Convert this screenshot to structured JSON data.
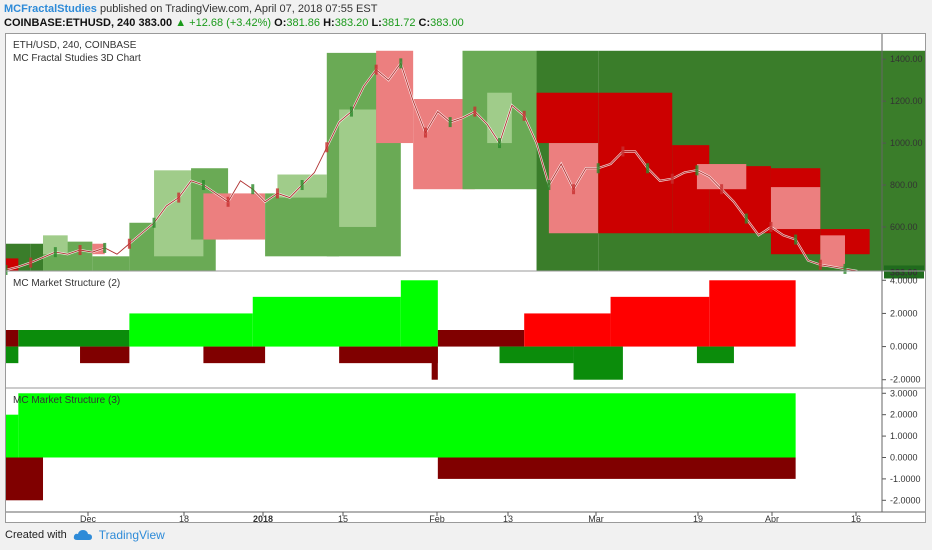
{
  "header": {
    "publisher": "MCFractalStudies",
    "published_text": "published on TradingView.com, April 07, 2018 07:55 EST",
    "symbol": "COINBASE:ETHUSD, 240",
    "last": "383.00",
    "change": "▲ +12.68 (+3.42%)",
    "o_label": "O:",
    "o_value": "381.86",
    "h_label": "H:",
    "h_value": "383.20",
    "l_label": "L:",
    "l_value": "381.72",
    "c_label": "C:",
    "c_value": "383.00"
  },
  "footer": {
    "created_with": "Created with",
    "brand": "TradingView",
    "logo_icon": "tradingview-cloud-icon"
  },
  "colors": {
    "dark_green": "#3a7d2a",
    "mid_green": "#6aaa55",
    "light_green": "#a0cc8a",
    "dark_red": "#cc0000",
    "light_red": "#ec7f7f",
    "bright_green": "#00ff00",
    "bright_red": "#ff0000",
    "maroon": "#800000",
    "forest_green": "#0b8c0b",
    "price_badge": "#206b1d"
  },
  "chart_data": [
    {
      "type": "area",
      "title": "ETH/USD, 240, COINBASE",
      "subtitle": "MC Fractal Studies 3D Chart",
      "y_ticks": [
        "1400.00",
        "1200.00",
        "1000.00",
        "800.00",
        "600.00"
      ],
      "ylim": [
        390,
        1520
      ],
      "last_price_label": "383.00",
      "x_ticks": [
        "Dec",
        "18",
        "2018",
        "15",
        "Feb",
        "13",
        "Mar",
        "19",
        "Apr",
        "16"
      ],
      "price_path": [
        [
          0,
          395
        ],
        [
          1,
          410
        ],
        [
          2,
          430
        ],
        [
          3,
          455
        ],
        [
          4,
          480
        ],
        [
          5,
          470
        ],
        [
          6,
          490
        ],
        [
          7,
          480
        ],
        [
          8,
          500
        ],
        [
          9,
          470
        ],
        [
          10,
          520
        ],
        [
          11,
          570
        ],
        [
          12,
          620
        ],
        [
          13,
          700
        ],
        [
          14,
          740
        ],
        [
          15,
          820
        ],
        [
          16,
          800
        ],
        [
          17,
          760
        ],
        [
          18,
          720
        ],
        [
          19,
          820
        ],
        [
          20,
          780
        ],
        [
          21,
          720
        ],
        [
          22,
          760
        ],
        [
          23,
          740
        ],
        [
          24,
          800
        ],
        [
          25,
          860
        ],
        [
          26,
          980
        ],
        [
          27,
          1100
        ],
        [
          28,
          1150
        ],
        [
          29,
          1270
        ],
        [
          30,
          1350
        ],
        [
          31,
          1300
        ],
        [
          32,
          1380
        ],
        [
          33,
          1200
        ],
        [
          34,
          1050
        ],
        [
          35,
          1150
        ],
        [
          36,
          1100
        ],
        [
          37,
          1120
        ],
        [
          38,
          1150
        ],
        [
          39,
          1090
        ],
        [
          40,
          1000
        ],
        [
          41,
          1180
        ],
        [
          42,
          1130
        ],
        [
          43,
          1000
        ],
        [
          44,
          800
        ],
        [
          45,
          900
        ],
        [
          46,
          780
        ],
        [
          47,
          880
        ],
        [
          48,
          880
        ],
        [
          49,
          900
        ],
        [
          50,
          960
        ],
        [
          51,
          960
        ],
        [
          52,
          880
        ],
        [
          53,
          820
        ],
        [
          54,
          830
        ],
        [
          55,
          860
        ],
        [
          56,
          870
        ],
        [
          57,
          840
        ],
        [
          58,
          780
        ],
        [
          59,
          720
        ],
        [
          60,
          640
        ],
        [
          61,
          560
        ],
        [
          62,
          600
        ],
        [
          63,
          560
        ],
        [
          64,
          540
        ],
        [
          65,
          440
        ],
        [
          66,
          420
        ],
        [
          67,
          410
        ],
        [
          68,
          400
        ],
        [
          69,
          390
        ]
      ],
      "zones": [
        {
          "x0": 0,
          "x1": 2,
          "y0": 390,
          "y1": 520,
          "color": "dark_green"
        },
        {
          "x0": 0,
          "x1": 1,
          "y0": 390,
          "y1": 450,
          "color": "dark_red"
        },
        {
          "x0": 2,
          "x1": 3,
          "y0": 390,
          "y1": 520,
          "color": "dark_green"
        },
        {
          "x0": 3,
          "x1": 7,
          "y0": 390,
          "y1": 530,
          "color": "mid_green"
        },
        {
          "x0": 3,
          "x1": 5,
          "y0": 470,
          "y1": 560,
          "color": "light_green"
        },
        {
          "x0": 7,
          "x1": 8,
          "y0": 470,
          "y1": 520,
          "color": "light_red"
        },
        {
          "x0": 7,
          "x1": 10,
          "y0": 390,
          "y1": 460,
          "color": "mid_green"
        },
        {
          "x0": 10,
          "x1": 17,
          "y0": 390,
          "y1": 620,
          "color": "mid_green"
        },
        {
          "x0": 12,
          "x1": 16,
          "y0": 460,
          "y1": 870,
          "color": "light_green"
        },
        {
          "x0": 15,
          "x1": 18,
          "y0": 540,
          "y1": 880,
          "color": "mid_green"
        },
        {
          "x0": 16,
          "x1": 21,
          "y0": 540,
          "y1": 760,
          "color": "light_red"
        },
        {
          "x0": 21,
          "x1": 27,
          "y0": 460,
          "y1": 760,
          "color": "mid_green"
        },
        {
          "x0": 22,
          "x1": 26,
          "y0": 740,
          "y1": 850,
          "color": "light_green"
        },
        {
          "x0": 26,
          "x1": 32,
          "y0": 460,
          "y1": 1430,
          "color": "mid_green"
        },
        {
          "x0": 27,
          "x1": 30,
          "y0": 600,
          "y1": 1160,
          "color": "light_green"
        },
        {
          "x0": 30,
          "x1": 33,
          "y0": 1000,
          "y1": 1440,
          "color": "light_red"
        },
        {
          "x0": 33,
          "x1": 38,
          "y0": 780,
          "y1": 1210,
          "color": "light_red"
        },
        {
          "x0": 37,
          "x1": 43,
          "y0": 780,
          "y1": 1440,
          "color": "mid_green"
        },
        {
          "x0": 39,
          "x1": 41,
          "y0": 1000,
          "y1": 1240,
          "color": "light_green"
        },
        {
          "x0": 43,
          "x1": 48,
          "y0": 390,
          "y1": 1440,
          "color": "dark_green"
        },
        {
          "x0": 43,
          "x1": 48,
          "y0": 1000,
          "y1": 1240,
          "color": "dark_red"
        },
        {
          "x0": 44,
          "x1": 48,
          "y0": 570,
          "y1": 1000,
          "color": "light_red"
        },
        {
          "x0": 48,
          "x1": 80,
          "y0": 390,
          "y1": 1440,
          "color": "dark_green"
        },
        {
          "x0": 48,
          "x1": 54,
          "y0": 570,
          "y1": 1240,
          "color": "dark_red"
        },
        {
          "x0": 54,
          "x1": 57,
          "y0": 570,
          "y1": 990,
          "color": "dark_red"
        },
        {
          "x0": 57,
          "x1": 62,
          "y0": 570,
          "y1": 890,
          "color": "dark_red"
        },
        {
          "x0": 56,
          "x1": 60,
          "y0": 780,
          "y1": 900,
          "color": "light_red"
        },
        {
          "x0": 62,
          "x1": 66,
          "y0": 470,
          "y1": 880,
          "color": "dark_red"
        },
        {
          "x0": 62,
          "x1": 66,
          "y0": 590,
          "y1": 790,
          "color": "light_red"
        },
        {
          "x0": 66,
          "x1": 70,
          "y0": 470,
          "y1": 590,
          "color": "dark_red"
        },
        {
          "x0": 66,
          "x1": 68,
          "y0": 410,
          "y1": 560,
          "color": "light_red"
        }
      ]
    },
    {
      "type": "bar",
      "title": "MC Market Structure (2)",
      "y_ticks": [
        "4.0000",
        "2.0000",
        "0.0000",
        "-2.0000"
      ],
      "ylim": [
        -2.5,
        4.5
      ],
      "segments": [
        {
          "x0": 0,
          "x1": 1,
          "v": 1,
          "color": "maroon"
        },
        {
          "x0": 1,
          "x1": 10,
          "v": 1,
          "color": "forest_green"
        },
        {
          "x0": 10,
          "x1": 20,
          "v": 2,
          "color": "bright_green"
        },
        {
          "x0": 20,
          "x1": 32,
          "v": 3,
          "color": "bright_green"
        },
        {
          "x0": 32,
          "x1": 35,
          "v": 4,
          "color": "bright_green"
        },
        {
          "x0": 35,
          "x1": 42,
          "v": 1,
          "color": "maroon"
        },
        {
          "x0": 42,
          "x1": 49,
          "v": 2,
          "color": "bright_red"
        },
        {
          "x0": 49,
          "x1": 57,
          "v": 3,
          "color": "bright_red"
        },
        {
          "x0": 57,
          "x1": 64,
          "v": 4,
          "color": "bright_red"
        },
        {
          "x0": 0,
          "x1": 1,
          "v": -1,
          "color": "forest_green"
        },
        {
          "x0": 6,
          "x1": 10,
          "v": -1,
          "color": "maroon"
        },
        {
          "x0": 16,
          "x1": 21,
          "v": -1,
          "color": "maroon"
        },
        {
          "x0": 27,
          "x1": 35,
          "v": -1,
          "color": "maroon"
        },
        {
          "x0": 34.5,
          "x1": 35,
          "v": -2,
          "color": "maroon"
        },
        {
          "x0": 40,
          "x1": 46,
          "v": -1,
          "color": "forest_green"
        },
        {
          "x0": 46,
          "x1": 50,
          "v": -2,
          "color": "forest_green"
        },
        {
          "x0": 56,
          "x1": 59,
          "v": -1,
          "color": "forest_green"
        }
      ]
    },
    {
      "type": "bar",
      "title": "MC Market Structure (3)",
      "y_ticks": [
        "3.0000",
        "2.0000",
        "1.0000",
        "0.0000",
        "-1.0000",
        "-2.0000"
      ],
      "ylim": [
        -2.5,
        3.2
      ],
      "segments": [
        {
          "x0": 0,
          "x1": 1,
          "v": 2,
          "color": "bright_green"
        },
        {
          "x0": 1,
          "x1": 64,
          "v": 3,
          "color": "bright_green"
        },
        {
          "x0": 0,
          "x1": 3,
          "v": -2,
          "color": "maroon"
        },
        {
          "x0": 35,
          "x1": 64,
          "v": -1,
          "color": "maroon"
        }
      ]
    }
  ]
}
